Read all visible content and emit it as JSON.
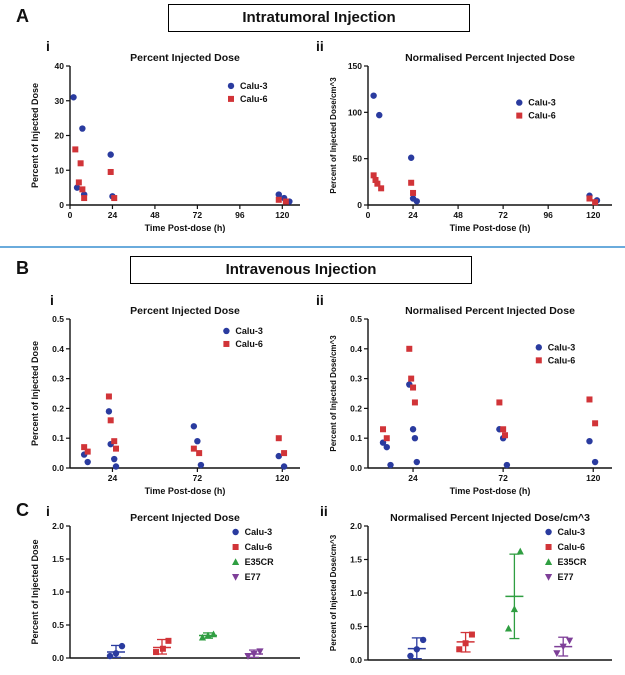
{
  "panels": {
    "a": {
      "letter": "A",
      "title": "Intratumoral Injection",
      "i": "i",
      "ii": "ii"
    },
    "b": {
      "letter": "B",
      "title": "Intravenous Injection",
      "i": "i",
      "ii": "ii"
    },
    "c": {
      "letter": "C",
      "i": "i",
      "ii": "ii"
    }
  },
  "colors": {
    "calu3": "#2a3b9f",
    "calu6": "#d13438",
    "e35cr": "#2f9e41",
    "e77": "#7e3f98",
    "axis": "#111111",
    "divider": "#6aabdc"
  },
  "chart_data": [
    {
      "id": "A-i",
      "type": "scatter",
      "title": "Percent Injected Dose",
      "xlabel": "Time Post-dose (h)",
      "ylabel": "Percent of Injected Dose",
      "xlim": [
        0,
        130
      ],
      "ylim": [
        0,
        40
      ],
      "xticks": [
        0,
        24,
        48,
        72,
        96,
        120
      ],
      "xtick_labels": [
        "0",
        "24",
        "48",
        "72",
        "96",
        "120"
      ],
      "yticks": [
        0,
        10,
        20,
        30,
        40
      ],
      "ytick_labels": [
        "0",
        "10",
        "20",
        "30",
        "40"
      ],
      "grid": false,
      "margins": {
        "l": 42,
        "r": 8,
        "t": 16,
        "b": 30
      },
      "legend": {
        "fx": 0.7,
        "fy": 0.1,
        "dy": 13
      },
      "series": [
        {
          "name": "Calu-3",
          "marker": "circle",
          "color_key": "calu3",
          "points": [
            [
              2,
              31
            ],
            [
              7,
              22
            ],
            [
              4,
              5
            ],
            [
              8,
              3
            ],
            [
              23,
              14.5
            ],
            [
              24,
              2.5
            ],
            [
              118,
              3
            ],
            [
              121,
              2
            ],
            [
              124,
              1
            ]
          ]
        },
        {
          "name": "Calu-6",
          "marker": "square",
          "color_key": "calu6",
          "points": [
            [
              3,
              16
            ],
            [
              6,
              12
            ],
            [
              5,
              6.5
            ],
            [
              7,
              4.5
            ],
            [
              8,
              2
            ],
            [
              23,
              9.5
            ],
            [
              25,
              2
            ],
            [
              118,
              1.5
            ],
            [
              122,
              1
            ]
          ]
        }
      ]
    },
    {
      "id": "A-ii",
      "type": "scatter",
      "title": "Normalised Percent Injected Dose",
      "xlabel": "Time Post-dose (h)",
      "ylabel": "Percent of Injected Dose/cm^3",
      "xlim": [
        0,
        130
      ],
      "ylim": [
        0,
        150
      ],
      "xticks": [
        0,
        24,
        48,
        72,
        96,
        120
      ],
      "xtick_labels": [
        "0",
        "24",
        "48",
        "72",
        "96",
        "120"
      ],
      "yticks": [
        0,
        50,
        100,
        150
      ],
      "ytick_labels": [
        "0",
        "50",
        "100",
        "150"
      ],
      "grid": false,
      "margins": {
        "l": 42,
        "r": 8,
        "t": 16,
        "b": 30
      },
      "legend": {
        "fx": 0.62,
        "fy": 0.22,
        "dy": 13
      },
      "series": [
        {
          "name": "Calu-3",
          "marker": "circle",
          "color_key": "calu3",
          "points": [
            [
              3,
              118
            ],
            [
              6,
              97
            ],
            [
              23,
              51
            ],
            [
              24,
              7
            ],
            [
              26,
              4
            ],
            [
              118,
              10
            ],
            [
              122,
              5
            ]
          ]
        },
        {
          "name": "Calu-6",
          "marker": "square",
          "color_key": "calu6",
          "points": [
            [
              3,
              32
            ],
            [
              4,
              27
            ],
            [
              5,
              23
            ],
            [
              7,
              18
            ],
            [
              23,
              24
            ],
            [
              24,
              13
            ],
            [
              118,
              7
            ],
            [
              121,
              3
            ]
          ]
        }
      ]
    },
    {
      "id": "B-i",
      "type": "scatter",
      "title": "Percent Injected Dose",
      "xlabel": "Time Post-dose (h)",
      "ylabel": "Percent of Injected Dose",
      "xlim": [
        0,
        130
      ],
      "ylim": [
        0,
        0.5
      ],
      "xticks": [
        24,
        72,
        120
      ],
      "xtick_labels": [
        "24",
        "72",
        "120"
      ],
      "yticks": [
        0,
        0.1,
        0.2,
        0.3,
        0.4,
        0.5
      ],
      "ytick_labels": [
        "0.0",
        "0.1",
        "0.2",
        "0.3",
        "0.4",
        "0.5"
      ],
      "grid": false,
      "margins": {
        "l": 42,
        "r": 8,
        "t": 16,
        "b": 30
      },
      "legend": {
        "fx": 0.68,
        "fy": 0.04,
        "dy": 13
      },
      "series": [
        {
          "name": "Calu-3",
          "marker": "circle",
          "color_key": "calu3",
          "points": [
            [
              8,
              0.045
            ],
            [
              10,
              0.02
            ],
            [
              22,
              0.19
            ],
            [
              23,
              0.08
            ],
            [
              25,
              0.03
            ],
            [
              26,
              0.005
            ],
            [
              70,
              0.14
            ],
            [
              72,
              0.09
            ],
            [
              74,
              0.01
            ],
            [
              118,
              0.04
            ],
            [
              121,
              0.005
            ]
          ]
        },
        {
          "name": "Calu-6",
          "marker": "square",
          "color_key": "calu6",
          "points": [
            [
              8,
              0.07
            ],
            [
              10,
              0.055
            ],
            [
              22,
              0.24
            ],
            [
              23,
              0.16
            ],
            [
              25,
              0.09
            ],
            [
              26,
              0.065
            ],
            [
              70,
              0.065
            ],
            [
              73,
              0.05
            ],
            [
              118,
              0.1
            ],
            [
              121,
              0.05
            ]
          ]
        }
      ]
    },
    {
      "id": "B-ii",
      "type": "scatter",
      "title": "Normalised Percent Injected Dose",
      "xlabel": "Time Post-dose (h)",
      "ylabel": "Percent of Injected Dose/cm^3",
      "xlim": [
        0,
        130
      ],
      "ylim": [
        0,
        0.5
      ],
      "xticks": [
        24,
        72,
        120
      ],
      "xtick_labels": [
        "24",
        "72",
        "120"
      ],
      "yticks": [
        0,
        0.1,
        0.2,
        0.3,
        0.4,
        0.5
      ],
      "ytick_labels": [
        "0.0",
        "0.1",
        "0.2",
        "0.3",
        "0.4",
        "0.5"
      ],
      "grid": false,
      "margins": {
        "l": 42,
        "r": 8,
        "t": 16,
        "b": 30
      },
      "legend": {
        "fx": 0.7,
        "fy": 0.15,
        "dy": 13
      },
      "series": [
        {
          "name": "Calu-3",
          "marker": "circle",
          "color_key": "calu3",
          "points": [
            [
              8,
              0.085
            ],
            [
              10,
              0.07
            ],
            [
              12,
              0.01
            ],
            [
              22,
              0.28
            ],
            [
              24,
              0.13
            ],
            [
              25,
              0.1
            ],
            [
              26,
              0.02
            ],
            [
              70,
              0.13
            ],
            [
              72,
              0.1
            ],
            [
              74,
              0.01
            ],
            [
              118,
              0.09
            ],
            [
              121,
              0.02
            ]
          ]
        },
        {
          "name": "Calu-6",
          "marker": "square",
          "color_key": "calu6",
          "points": [
            [
              8,
              0.13
            ],
            [
              10,
              0.1
            ],
            [
              22,
              0.4
            ],
            [
              23,
              0.3
            ],
            [
              24,
              0.27
            ],
            [
              25,
              0.22
            ],
            [
              70,
              0.22
            ],
            [
              72,
              0.13
            ],
            [
              73,
              0.11
            ],
            [
              118,
              0.23
            ],
            [
              121,
              0.15
            ]
          ]
        }
      ]
    },
    {
      "id": "C-i",
      "type": "scatter-error",
      "title": "Percent Injected Dose",
      "xlabel": "",
      "ylabel": "Percent of Injected Dose",
      "xlim": [
        0,
        5
      ],
      "ylim": [
        0,
        2
      ],
      "xticks": [],
      "xtick_labels": [],
      "yticks": [
        0,
        0.5,
        1,
        1.5,
        2
      ],
      "ytick_labels": [
        "0.0",
        "0.5",
        "1.0",
        "1.5",
        "2.0"
      ],
      "grid": false,
      "margins": {
        "l": 42,
        "r": 8,
        "t": 16,
        "b": 10
      },
      "legend": {
        "fx": 0.72,
        "fy": 0.0,
        "dy": 15
      },
      "series": [
        {
          "name": "Calu-3",
          "marker": "circle",
          "color_key": "calu3",
          "x": 1,
          "points": [
            [
              -0.13,
              0.03
            ],
            [
              0,
              0.07
            ],
            [
              0.13,
              0.18
            ]
          ],
          "mean": 0.09,
          "lo": 0.01,
          "hi": 0.19
        },
        {
          "name": "Calu-6",
          "marker": "square",
          "color_key": "calu6",
          "x": 2,
          "points": [
            [
              -0.13,
              0.09
            ],
            [
              0.02,
              0.14
            ],
            [
              0.14,
              0.26
            ]
          ],
          "mean": 0.16,
          "lo": 0.06,
          "hi": 0.28
        },
        {
          "name": "E35CR",
          "marker": "triangle",
          "color_key": "e35cr",
          "x": 3,
          "points": [
            [
              -0.12,
              0.31
            ],
            [
              0,
              0.34
            ],
            [
              0.12,
              0.36
            ]
          ],
          "mean": 0.34,
          "lo": 0.3,
          "hi": 0.38
        },
        {
          "name": "E77",
          "marker": "triangle-down",
          "color_key": "e77",
          "x": 4,
          "points": [
            [
              -0.13,
              0.03
            ],
            [
              0,
              0.06
            ],
            [
              0.13,
              0.1
            ]
          ],
          "mean": 0.06,
          "lo": 0.01,
          "hi": 0.12
        }
      ]
    },
    {
      "id": "C-ii",
      "type": "scatter-error",
      "title": "Normalised Percent Injected Dose/cm^3",
      "xlabel": "",
      "ylabel": "Percent of Injected Dose/cm^3",
      "xlim": [
        0,
        5
      ],
      "ylim": [
        0,
        2
      ],
      "xticks": [],
      "xtick_labels": [],
      "yticks": [
        0,
        0.5,
        1,
        1.5,
        2
      ],
      "ytick_labels": [
        "0.0",
        "0.5",
        "1.0",
        "1.5",
        "2.0"
      ],
      "grid": false,
      "margins": {
        "l": 42,
        "r": 8,
        "t": 16,
        "b": 10
      },
      "legend": {
        "fx": 0.74,
        "fy": 0.0,
        "dy": 15
      },
      "series": [
        {
          "name": "Calu-3",
          "marker": "circle",
          "color_key": "calu3",
          "x": 1,
          "points": [
            [
              -0.13,
              0.06
            ],
            [
              0,
              0.16
            ],
            [
              0.13,
              0.3
            ]
          ],
          "mean": 0.17,
          "lo": 0.02,
          "hi": 0.33
        },
        {
          "name": "Calu-6",
          "marker": "square",
          "color_key": "calu6",
          "x": 2,
          "points": [
            [
              -0.13,
              0.16
            ],
            [
              0,
              0.25
            ],
            [
              0.13,
              0.38
            ]
          ],
          "mean": 0.27,
          "lo": 0.12,
          "hi": 0.41
        },
        {
          "name": "E35CR",
          "marker": "triangle",
          "color_key": "e35cr",
          "x": 3,
          "points": [
            [
              -0.12,
              0.47
            ],
            [
              0,
              0.76
            ],
            [
              0.12,
              1.62
            ]
          ],
          "mean": 0.95,
          "lo": 0.32,
          "hi": 1.58
        },
        {
          "name": "E77",
          "marker": "triangle-down",
          "color_key": "e77",
          "x": 4,
          "points": [
            [
              -0.13,
              0.1
            ],
            [
              0,
              0.2
            ],
            [
              0.13,
              0.29
            ]
          ],
          "mean": 0.2,
          "lo": 0.06,
          "hi": 0.34
        }
      ]
    }
  ]
}
